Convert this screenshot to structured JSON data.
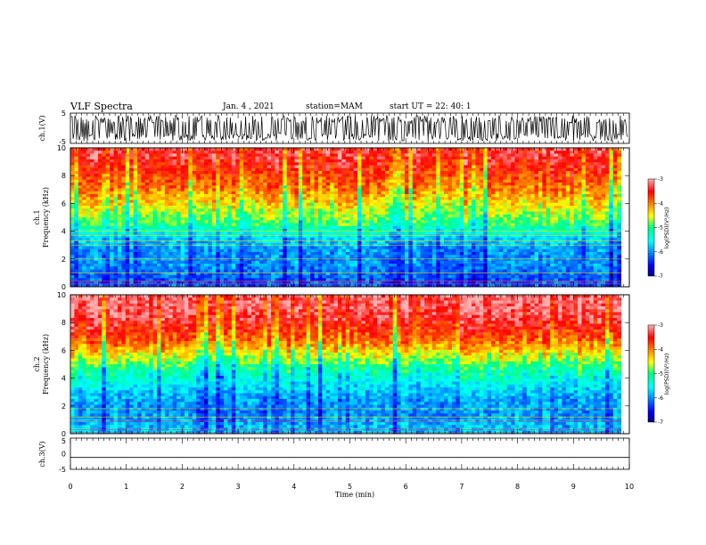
{
  "header": {
    "title": "VLF Spectra",
    "date": "Jan. 4 , 2021",
    "station": "station=MAM",
    "start": "start UT =  22: 40: 1"
  },
  "chart_data": [
    {
      "type": "line",
      "panel": "ch1-waveform",
      "ylabel": "ch.1(V)",
      "ylim": [
        -5,
        5
      ],
      "yticks": [
        "5",
        "-5"
      ],
      "xlim": [
        0,
        10
      ],
      "note": "dense noisy waveform, black"
    },
    {
      "type": "heatmap",
      "panel": "ch1-spectrogram",
      "ylabel_line1": "ch.1",
      "ylabel_line2": "Frequency (kHz)",
      "ylim": [
        0,
        10
      ],
      "yticks": [
        "0",
        "2",
        "4",
        "6",
        "8",
        "10"
      ],
      "xlim": [
        0,
        9.85
      ],
      "colorbar": {
        "label": "log(PSD)(V²/Hz)",
        "range": [
          -7,
          -3
        ],
        "ticks": [
          "-3",
          "-4",
          "-5",
          "-6",
          "-7"
        ]
      },
      "approx_log_psd_by_freq_kHz": [
        {
          "f": 0.5,
          "v": -6.2
        },
        {
          "f": 1.5,
          "v": -6.0
        },
        {
          "f": 2.5,
          "v": -6.0
        },
        {
          "f": 3.5,
          "v": -5.7
        },
        {
          "f": 4.5,
          "v": -5.0
        },
        {
          "f": 5.5,
          "v": -4.6
        },
        {
          "f": 6.5,
          "v": -4.2
        },
        {
          "f": 7.5,
          "v": -3.9
        },
        {
          "f": 8.5,
          "v": -3.6
        },
        {
          "f": 9.5,
          "v": -3.4
        }
      ],
      "line_frequencies_kHz": [
        0.2,
        0.4,
        1.0,
        2.0,
        3.0,
        3.3,
        3.7,
        4.0
      ]
    },
    {
      "type": "heatmap",
      "panel": "ch2-spectrogram",
      "ylabel_line1": "ch.2",
      "ylabel_line2": "Frequency (kHz)",
      "ylim": [
        0,
        10
      ],
      "yticks": [
        "0",
        "2",
        "4",
        "6",
        "8",
        "10"
      ],
      "xlim": [
        0,
        9.85
      ],
      "colorbar": {
        "label": "log(PSD)(V²/Hz)",
        "range": [
          -7,
          -3
        ],
        "ticks": [
          "-3",
          "-4",
          "-5",
          "-6",
          "-7"
        ]
      },
      "approx_log_psd_by_freq_kHz": [
        {
          "f": 0.5,
          "v": -5.8
        },
        {
          "f": 1.5,
          "v": -6.0
        },
        {
          "f": 2.5,
          "v": -5.9
        },
        {
          "f": 3.5,
          "v": -5.6
        },
        {
          "f": 4.5,
          "v": -5.2
        },
        {
          "f": 5.5,
          "v": -4.6
        },
        {
          "f": 6.5,
          "v": -4.0
        },
        {
          "f": 7.5,
          "v": -3.6
        },
        {
          "f": 8.5,
          "v": -3.3
        },
        {
          "f": 9.5,
          "v": -3.2
        }
      ],
      "line_frequencies_kHz": [
        0.1,
        0.3,
        0.9,
        1.2,
        1.8
      ]
    },
    {
      "type": "line",
      "panel": "ch3-waveform",
      "ylabel": "ch.3(V)",
      "ylim": [
        -5,
        5
      ],
      "yticks": [
        "5",
        "0",
        "-5"
      ],
      "constant_value": -1.2,
      "xlim": [
        0,
        10
      ],
      "xlabel": "Time (min)",
      "xticks": [
        "0",
        "1",
        "2",
        "3",
        "4",
        "5",
        "6",
        "7",
        "8",
        "9",
        "10"
      ]
    }
  ]
}
